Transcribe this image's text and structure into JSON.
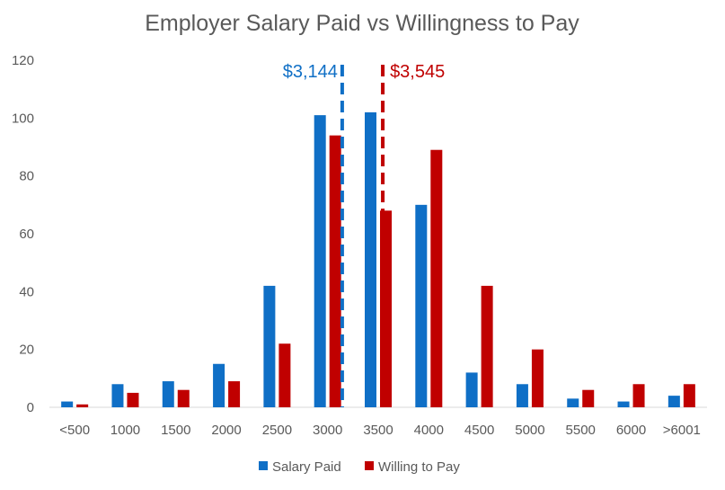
{
  "chart_data": {
    "type": "bar",
    "title": "Employer Salary Paid vs Willingness to Pay",
    "xlabel": "",
    "ylabel": "",
    "categories": [
      "<500",
      "1000",
      "1500",
      "2000",
      "2500",
      "3000",
      "3500",
      "4000",
      "4500",
      "5000",
      "5500",
      "6000",
      ">6001"
    ],
    "series": [
      {
        "name": "Salary Paid",
        "color": "#0F6FC6",
        "values": [
          2,
          8,
          9,
          15,
          42,
          101,
          102,
          70,
          12,
          8,
          3,
          2,
          4
        ]
      },
      {
        "name": "Willing to Pay",
        "color": "#C00000",
        "values": [
          1,
          5,
          6,
          9,
          22,
          94,
          68,
          89,
          42,
          20,
          6,
          8,
          8
        ]
      }
    ],
    "ylim": [
      0,
      120
    ],
    "yticks": [
      0,
      20,
      40,
      60,
      80,
      100,
      120
    ],
    "grid": false,
    "legend": "bottom",
    "annotations": [
      {
        "label": "$3,144",
        "value": 3144,
        "color": "#0F6FC6",
        "style": "dashed vertical line",
        "label_side": "left"
      },
      {
        "label": "$3,545",
        "value": 3545,
        "color": "#C00000",
        "style": "dashed vertical line",
        "label_side": "right"
      }
    ]
  }
}
